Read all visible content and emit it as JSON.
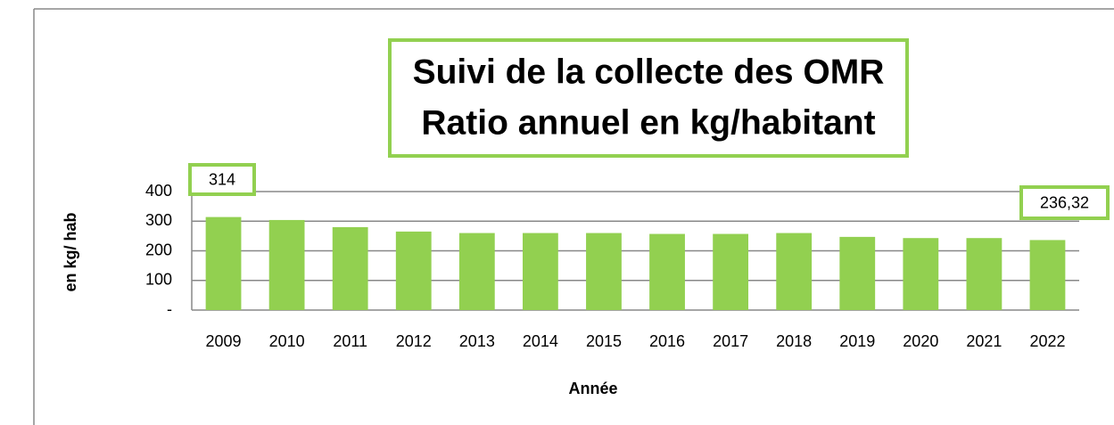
{
  "chart_data": {
    "type": "bar",
    "title": [
      "Suivi de la collecte des OMR",
      "Ratio annuel en kg/habitant"
    ],
    "x_label": "Année",
    "y_label": "en kg/ hab",
    "categories": [
      "2009",
      "2010",
      "2011",
      "2012",
      "2013",
      "2014",
      "2015",
      "2016",
      "2017",
      "2018",
      "2019",
      "2020",
      "2021",
      "2022"
    ],
    "values": [
      314,
      304,
      280,
      265,
      260,
      260,
      260,
      257,
      257,
      260,
      247,
      243,
      243,
      236.32
    ],
    "value_labels": [
      "314",
      null,
      null,
      null,
      null,
      null,
      null,
      null,
      null,
      null,
      null,
      null,
      null,
      "236,32"
    ],
    "color": "#92d050",
    "ylim": [
      0,
      400
    ],
    "yticks": [
      {
        "value": 0,
        "label": "-"
      },
      100,
      200,
      300,
      400
    ],
    "grid": true
  }
}
